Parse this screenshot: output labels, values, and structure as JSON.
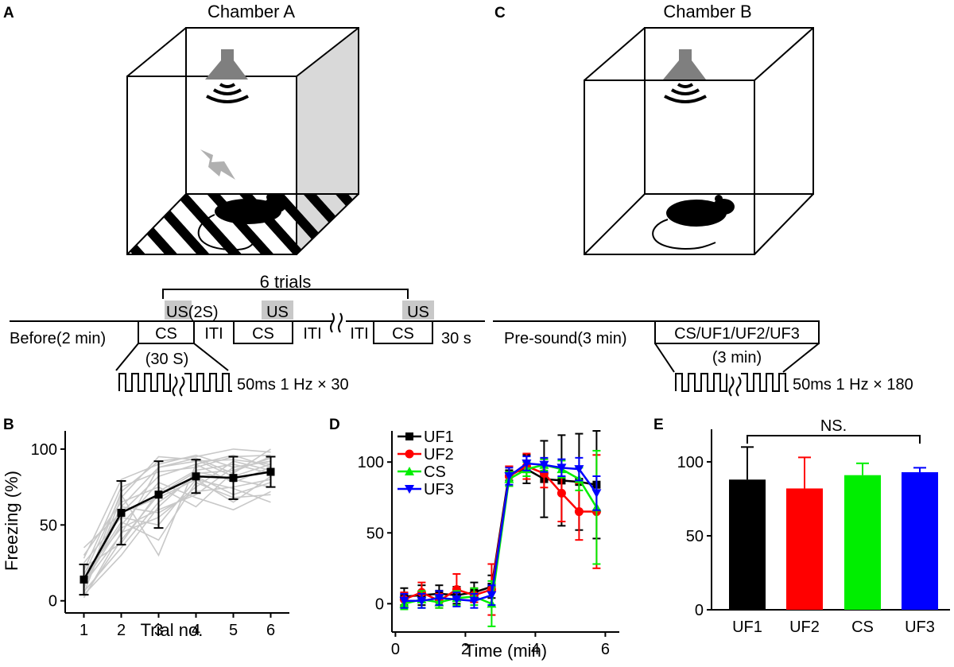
{
  "panels": {
    "a": {
      "label": "A",
      "title": "Chamber A"
    },
    "c": {
      "label": "C",
      "title": "Chamber B"
    }
  },
  "protocol_a": {
    "trials": "6 trials",
    "before": "Before(2 min)",
    "us_first": "US(2S)",
    "us": "US",
    "cs": "CS",
    "iti": "ITI",
    "cs_duration": "(30 S)",
    "end": "30 s",
    "pulse": "50ms 1 Hz × 30"
  },
  "protocol_c": {
    "pre": "Pre-sound(3 min)",
    "stim": "CS/UF1/UF2/UF3",
    "duration": "(3 min)",
    "pulse": "50ms 1 Hz × 180"
  },
  "colors": {
    "uf1": "#000000",
    "uf2": "#ff0000",
    "cs": "#00ee00",
    "uf3": "#0000ff",
    "individual": "#c8c8c8"
  },
  "chart_data": [
    {
      "panel": "B",
      "type": "line",
      "xlabel": "Trial no.",
      "ylabel": "Freezing (%)",
      "x": [
        1,
        2,
        3,
        4,
        5,
        6
      ],
      "xlim": [
        0.5,
        6.5
      ],
      "ylim": [
        -8,
        112
      ],
      "yticks": [
        0,
        50,
        100
      ],
      "series": [
        {
          "name": "mean",
          "values": [
            14,
            58,
            70,
            82,
            81,
            85
          ],
          "errors": [
            10,
            21,
            22,
            11,
            14,
            10
          ]
        }
      ],
      "individual": [
        [
          3,
          40,
          70,
          85,
          80,
          75
        ],
        [
          12,
          62,
          88,
          92,
          93,
          90
        ],
        [
          25,
          55,
          50,
          80,
          65,
          82
        ],
        [
          8,
          72,
          92,
          95,
          100,
          98
        ],
        [
          18,
          48,
          60,
          70,
          88,
          92
        ],
        [
          6,
          35,
          65,
          82,
          70,
          78
        ],
        [
          30,
          65,
          75,
          62,
          85,
          95
        ],
        [
          10,
          58,
          82,
          90,
          78,
          88
        ],
        [
          2,
          45,
          55,
          75,
          92,
          86
        ],
        [
          20,
          75,
          85,
          88,
          95,
          96
        ],
        [
          15,
          52,
          40,
          78,
          68,
          70
        ],
        [
          5,
          68,
          95,
          93,
          82,
          90
        ],
        [
          22,
          38,
          72,
          86,
          90,
          84
        ],
        [
          9,
          62,
          58,
          72,
          75,
          80
        ],
        [
          28,
          80,
          90,
          96,
          88,
          92
        ],
        [
          12,
          50,
          78,
          68,
          60,
          72
        ],
        [
          4,
          30,
          62,
          84,
          86,
          94
        ],
        [
          17,
          70,
          30,
          90,
          96,
          88
        ],
        [
          35,
          58,
          68,
          80,
          74,
          65
        ],
        [
          11,
          44,
          88,
          94,
          84,
          100
        ]
      ]
    },
    {
      "panel": "D",
      "type": "line",
      "xlabel": "Time (min)",
      "ylabel": "",
      "x": [
        0.25,
        0.75,
        1.25,
        1.75,
        2.25,
        2.75,
        3.25,
        3.75,
        4.25,
        4.75,
        5.25,
        5.75
      ],
      "xlim": [
        -0.1,
        6.4
      ],
      "ylim": [
        -20,
        122
      ],
      "xticks": [
        0,
        2,
        4,
        6
      ],
      "yticks": [
        0,
        50,
        100
      ],
      "series": [
        {
          "name": "UF1",
          "values": [
            5,
            6,
            7,
            6,
            8,
            12,
            92,
            95,
            88,
            87,
            86,
            84
          ],
          "errors": [
            6,
            7,
            6,
            6,
            7,
            8,
            5,
            10,
            27,
            32,
            34,
            38
          ]
        },
        {
          "name": "UF2",
          "values": [
            3,
            8,
            2,
            10,
            6,
            10,
            90,
            97,
            92,
            78,
            65,
            65
          ],
          "errors": [
            5,
            7,
            5,
            11,
            5,
            18,
            7,
            9,
            10,
            20,
            20,
            40
          ]
        },
        {
          "name": "CS",
          "values": [
            0,
            3,
            1,
            4,
            5,
            0,
            88,
            95,
            98,
            95,
            88,
            68
          ],
          "errors": [
            4,
            6,
            4,
            5,
            6,
            16,
            5,
            5,
            4,
            6,
            8,
            40
          ]
        },
        {
          "name": "UF3",
          "values": [
            2,
            2,
            4,
            3,
            2,
            6,
            90,
            99,
            98,
            96,
            95,
            78
          ],
          "errors": [
            5,
            5,
            5,
            5,
            5,
            7,
            6,
            5,
            5,
            6,
            8,
            12
          ]
        }
      ]
    },
    {
      "panel": "E",
      "type": "bar",
      "categories": [
        "UF1",
        "UF2",
        "CS",
        "UF3"
      ],
      "values": [
        88,
        82,
        91,
        93
      ],
      "errors": [
        22,
        21,
        8,
        3
      ],
      "ylim": [
        0,
        122
      ],
      "yticks": [
        0,
        50,
        100
      ],
      "annotation": "NS."
    }
  ],
  "panel_labels": {
    "b": "B",
    "d": "D",
    "e": "E"
  }
}
